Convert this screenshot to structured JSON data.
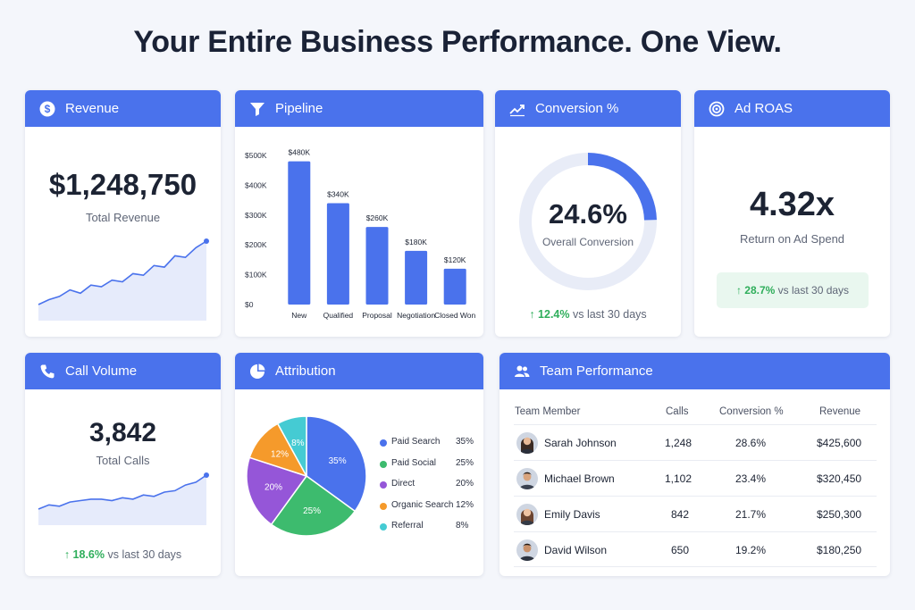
{
  "page": {
    "title": "Your Entire Business Performance. One View."
  },
  "colors": {
    "header": "#4a72ec",
    "bar": "#4a72ec",
    "positive": "#2fae5b",
    "area_fill": "#e6ebfb"
  },
  "revenue": {
    "header": "Revenue",
    "icon": "dollar-circle-icon",
    "value": "$1,248,750",
    "label": "Total Revenue",
    "trend": [
      3,
      6,
      8,
      12,
      10,
      15,
      14,
      18,
      17,
      22,
      21,
      27,
      26,
      33,
      32,
      38,
      42
    ]
  },
  "pipeline": {
    "header": "Pipeline",
    "icon": "funnel-icon"
  },
  "chart_data": {
    "type": "bar",
    "categories": [
      "New",
      "Qualified",
      "Proposal",
      "Negotiation",
      "Closed Won"
    ],
    "values": [
      480,
      340,
      260,
      180,
      120
    ],
    "value_labels": [
      "$480K",
      "$340K",
      "$260K",
      "$180K",
      "$120K"
    ],
    "y_ticks": [
      "$0",
      "$100K",
      "$200K",
      "$300K",
      "$400K",
      "$500K"
    ],
    "ylim": [
      0,
      500
    ],
    "ylabel": "",
    "xlabel": "",
    "title": ""
  },
  "conversion": {
    "header": "Conversion %",
    "icon": "trend-up-icon",
    "value": "24.6%",
    "label": "Overall Conversion",
    "fraction": 0.246,
    "delta": "12.4%",
    "delta_text": "vs last 30 days"
  },
  "roas": {
    "header": "Ad ROAS",
    "icon": "target-icon",
    "value": "4.32x",
    "label": "Return on Ad Spend",
    "delta": "28.7%",
    "delta_text": "vs last 30 days"
  },
  "calls": {
    "header": "Call Volume",
    "icon": "phone-icon",
    "value": "3,842",
    "label": "Total Calls",
    "delta": "18.6%",
    "delta_text": "vs last 30 days",
    "trend": [
      6,
      9,
      8,
      11,
      12,
      13,
      13,
      12,
      14,
      13,
      16,
      15,
      18,
      19,
      23,
      25,
      30
    ]
  },
  "attribution": {
    "header": "Attribution",
    "icon": "pie-chart-icon",
    "slices": [
      {
        "name": "Paid Search",
        "value": 35,
        "label": "35%",
        "color": "#4a72ec"
      },
      {
        "name": "Paid Social",
        "value": 25,
        "label": "25%",
        "color": "#3dbb6e"
      },
      {
        "name": "Direct",
        "value": 20,
        "label": "20%",
        "color": "#9556d8"
      },
      {
        "name": "Organic Search",
        "value": 12,
        "label": "12%",
        "color": "#f59a2b"
      },
      {
        "name": "Referral",
        "value": 8,
        "label": "8%",
        "color": "#45cbd3"
      }
    ]
  },
  "team": {
    "header": "Team Performance",
    "icon": "users-icon",
    "columns": [
      "Team Member",
      "Calls",
      "Conversion %",
      "Revenue"
    ],
    "rows": [
      {
        "name": "Sarah Johnson",
        "calls": "1,248",
        "conv": "28.6%",
        "revenue": "$425,600",
        "avatar": "female-avatar-icon"
      },
      {
        "name": "Michael Brown",
        "calls": "1,102",
        "conv": "23.4%",
        "revenue": "$320,450",
        "avatar": "male-avatar-icon"
      },
      {
        "name": "Emily Davis",
        "calls": "842",
        "conv": "21.7%",
        "revenue": "$250,300",
        "avatar": "female-avatar-icon"
      },
      {
        "name": "David Wilson",
        "calls": "650",
        "conv": "19.2%",
        "revenue": "$180,250",
        "avatar": "male-avatar-icon"
      }
    ]
  }
}
